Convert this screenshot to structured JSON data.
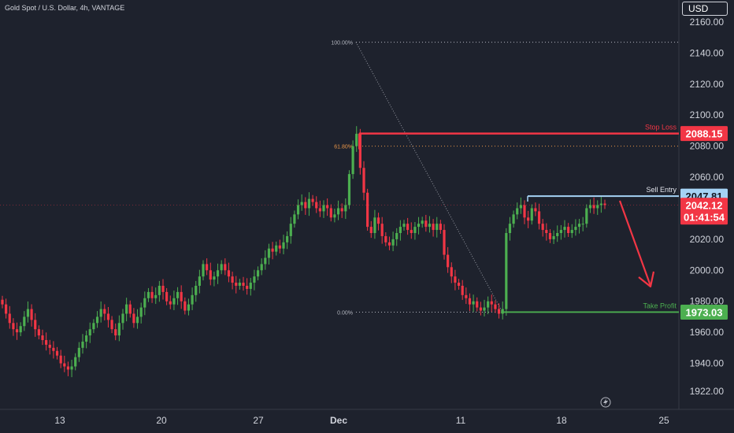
{
  "header": {
    "title": "Gold Spot / U.S. Dollar, 4h, VANTAGE",
    "currency": "USD"
  },
  "chart_data": {
    "type": "candlestick",
    "ylim": [
      1910,
      2170
    ],
    "y_ticks": [
      "1922.00",
      "1940.00",
      "1960.00",
      "1980.00",
      "2000.00",
      "2020.00",
      "2040.00",
      "2060.00",
      "2080.00",
      "2100.00",
      "2120.00",
      "2140.00",
      "2160.00"
    ],
    "x_ticks": [
      "13",
      "20",
      "27",
      "Dec",
      "11",
      "18",
      "25"
    ],
    "closes": [
      1978,
      1972,
      1966,
      1962,
      1960,
      1964,
      1970,
      1975,
      1968,
      1962,
      1958,
      1955,
      1952,
      1950,
      1948,
      1945,
      1940,
      1938,
      1936,
      1938,
      1944,
      1950,
      1954,
      1958,
      1962,
      1966,
      1970,
      1975,
      1972,
      1968,
      1962,
      1958,
      1966,
      1972,
      1978,
      1972,
      1966,
      1970,
      1976,
      1982,
      1986,
      1982,
      1984,
      1990,
      1986,
      1980,
      1978,
      1982,
      1986,
      1980,
      1974,
      1978,
      1984,
      1990,
      1996,
      2004,
      2000,
      1994,
      1996,
      2000,
      2004,
      2000,
      1996,
      1992,
      1990,
      1992,
      1990,
      1988,
      1992,
      1996,
      2000,
      2004,
      2008,
      2014,
      2012,
      2016,
      2014,
      2018,
      2022,
      2030,
      2036,
      2042,
      2044,
      2040,
      2046,
      2044,
      2040,
      2038,
      2042,
      2040,
      2034,
      2036,
      2040,
      2038,
      2042,
      2062,
      2080,
      2088,
      2066,
      2050,
      2028,
      2024,
      2034,
      2030,
      2022,
      2018,
      2016,
      2020,
      2024,
      2028,
      2030,
      2026,
      2024,
      2028,
      2030,
      2032,
      2028,
      2030,
      2026,
      2030,
      2026,
      2010,
      2002,
      1996,
      1992,
      1990,
      1984,
      1982,
      1978,
      1980,
      1976,
      1974,
      1976,
      1980,
      1978,
      1975,
      1972,
      1975,
      2024,
      2030,
      2036,
      2040,
      2042,
      2034,
      2032,
      2040,
      2038,
      2030,
      2026,
      2024,
      2020,
      2022,
      2024,
      2026,
      2028,
      2024,
      2026,
      2028,
      2030,
      2030,
      2040,
      2042,
      2040,
      2042,
      2043,
      2042
    ],
    "current_price": "2042.12",
    "countdown": "01:41:54",
    "fib_levels": [
      {
        "label": "100.00%",
        "value": 2147
      },
      {
        "label": "61.80%",
        "value": 2080
      },
      {
        "label": "0.00%",
        "value": 1973
      }
    ],
    "stop_loss": {
      "label": "Stop Loss",
      "value": 2088.15,
      "text": "2088.15"
    },
    "sell_entry": {
      "label": "Sell Entry",
      "value": 2047.81,
      "text": "2047.81"
    },
    "take_profit": {
      "label": "Take Profit",
      "value": 1973.03,
      "text": "1973.03"
    },
    "colors": {
      "background": "#1e222d",
      "up": "#4caf50",
      "down": "#f23645",
      "axis_text": "#d1d4dc",
      "fib_line": "#b2b5be",
      "fib_orange": "#e89548",
      "stop_loss": "#f23645",
      "sell_entry": "#a5d3f5",
      "take_profit": "#4caf50",
      "arrow": "#f23645"
    }
  }
}
